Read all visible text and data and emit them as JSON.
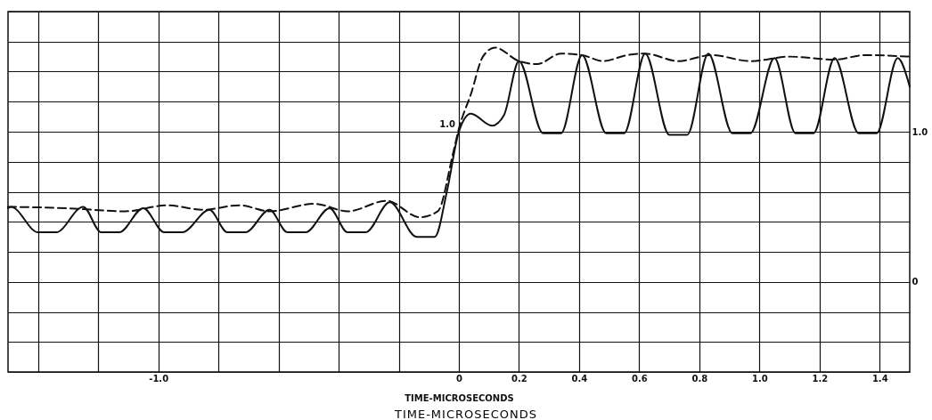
{
  "chart_data": {
    "type": "line",
    "xlabel": "TIME-MICROSECONDS",
    "annotations": [
      {
        "text": "1.0",
        "x": 0,
        "y": 1
      },
      "TIME-MICROSECONDS"
    ],
    "xlim": [
      -1.5,
      1.5
    ],
    "ylim": [
      -0.6,
      1.8
    ],
    "xticks": [
      {
        "value": -1.4,
        "label": null
      },
      {
        "value": -1.2,
        "label": null
      },
      {
        "value": -1,
        "label": "-1.0"
      },
      {
        "value": -0.8,
        "label": null
      },
      {
        "value": -0.6,
        "label": null
      },
      {
        "value": -0.4,
        "label": null
      },
      {
        "value": -0.2,
        "label": null
      },
      0,
      0.2,
      0.4,
      0.6,
      0.8,
      {
        "value": 1,
        "label": "1.0"
      },
      1.2,
      1.4
    ],
    "yticks": [
      {
        "value": -0.6,
        "label": null
      },
      {
        "value": -0.4,
        "label": null
      },
      {
        "value": -0.2,
        "label": null
      },
      0,
      {
        "value": 0.2,
        "label": null
      },
      {
        "value": 0.4,
        "label": null
      },
      {
        "value": 0.6,
        "label": null
      },
      {
        "value": 0.8,
        "label": null
      },
      {
        "value": 1,
        "label": "1.0"
      },
      {
        "value": 1.2,
        "label": null
      },
      {
        "value": 1.4,
        "label": null
      },
      {
        "value": 1.6,
        "label": null
      },
      {
        "value": 1.8,
        "label": null
      }
    ],
    "grid": true,
    "series": [
      {
        "color": "#111111",
        "line_style": "solid",
        "x": [
          -1.5,
          -1.49,
          -1.4,
          -1.34,
          -1.25,
          -1.19,
          -1.13,
          -1.05,
          -0.98,
          -0.92,
          -0.83,
          -0.77,
          -0.71,
          -0.63,
          -0.57,
          -0.51,
          -0.43,
          -0.37,
          -0.31,
          -0.23,
          -0.14,
          -0.08,
          -0.04,
          0,
          0.04,
          0.11,
          0.15,
          0.2,
          0.28,
          0.34,
          0.41,
          0.49,
          0.55,
          0.62,
          0.7,
          0.76,
          0.83,
          0.91,
          0.97,
          1.05,
          1.12,
          1.18,
          1.25,
          1.33,
          1.39,
          1.46,
          1.5
        ],
        "values": [
          0.49,
          0.5,
          0.33,
          0.33,
          0.5,
          0.33,
          0.33,
          0.49,
          0.33,
          0.33,
          0.48,
          0.33,
          0.33,
          0.48,
          0.33,
          0.33,
          0.49,
          0.33,
          0.33,
          0.53,
          0.3,
          0.3,
          0.6,
          1,
          1.12,
          1.04,
          1.11,
          1.47,
          0.99,
          0.99,
          1.51,
          0.99,
          0.99,
          1.52,
          0.98,
          0.98,
          1.52,
          0.99,
          0.99,
          1.49,
          0.99,
          0.99,
          1.49,
          0.99,
          0.99,
          1.49,
          1.3
        ]
      },
      {
        "color": "#111111",
        "line_style": "dashed",
        "x": [
          -1.5,
          -1.3,
          -1.11,
          -0.97,
          -0.85,
          -0.73,
          -0.63,
          -0.48,
          -0.37,
          -0.24,
          -0.13,
          -0.07,
          -0.02,
          0,
          0.04,
          0.08,
          0.12,
          0.2,
          0.26,
          0.34,
          0.41,
          0.48,
          0.56,
          0.62,
          0.73,
          0.84,
          0.97,
          1.1,
          1.25,
          1.35,
          1.5
        ],
        "values": [
          0.5,
          0.49,
          0.47,
          0.51,
          0.48,
          0.51,
          0.47,
          0.52,
          0.47,
          0.54,
          0.43,
          0.47,
          0.85,
          1.02,
          1.25,
          1.5,
          1.56,
          1.47,
          1.45,
          1.52,
          1.51,
          1.47,
          1.51,
          1.52,
          1.47,
          1.51,
          1.47,
          1.5,
          1.48,
          1.51,
          1.5
        ]
      }
    ]
  }
}
